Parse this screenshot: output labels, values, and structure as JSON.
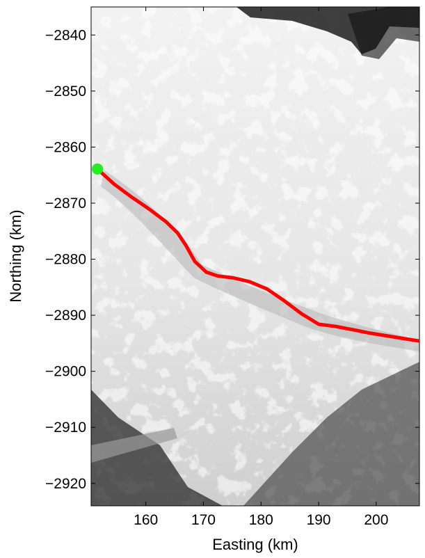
{
  "chart_data": {
    "type": "line",
    "background": "satellite image of glacier terrain (grayscale)",
    "xlabel": "Easting (km)",
    "ylabel": "Northing (km)",
    "xlim": [
      150.5,
      207.5
    ],
    "ylim": [
      -2924,
      -2835
    ],
    "xticks": [
      160,
      170,
      180,
      190,
      200
    ],
    "yticks": [
      -2840,
      -2850,
      -2860,
      -2870,
      -2880,
      -2890,
      -2900,
      -2910,
      -2920
    ],
    "xtick_labels": [
      "160",
      "170",
      "180",
      "190",
      "200"
    ],
    "ytick_labels": [
      "−2840",
      "−2850",
      "−2860",
      "−2870",
      "−2880",
      "−2890",
      "−2900",
      "−2910",
      "−2920"
    ],
    "grid": false,
    "series": [
      {
        "color": "#ff0000",
        "x": [
          151.9,
          154.5,
          157.5,
          160.5,
          163.5,
          165.5,
          167,
          168.5,
          170.5,
          172.5,
          175,
          178,
          181,
          184,
          187,
          190,
          193,
          196,
          199,
          202,
          205,
          207.5
        ],
        "y": [
          -2864.2,
          -2866.6,
          -2868.9,
          -2871.0,
          -2873.3,
          -2875.3,
          -2877.6,
          -2880.4,
          -2882.3,
          -2883.0,
          -2883.3,
          -2884.0,
          -2885.3,
          -2887.4,
          -2889.7,
          -2891.6,
          -2892.0,
          -2892.6,
          -2893.2,
          -2893.7,
          -2894.2,
          -2894.6
        ]
      }
    ],
    "markers": [
      {
        "x": 151.6,
        "y": -2863.9,
        "color": "#22ee22",
        "shape": "circle"
      }
    ]
  }
}
